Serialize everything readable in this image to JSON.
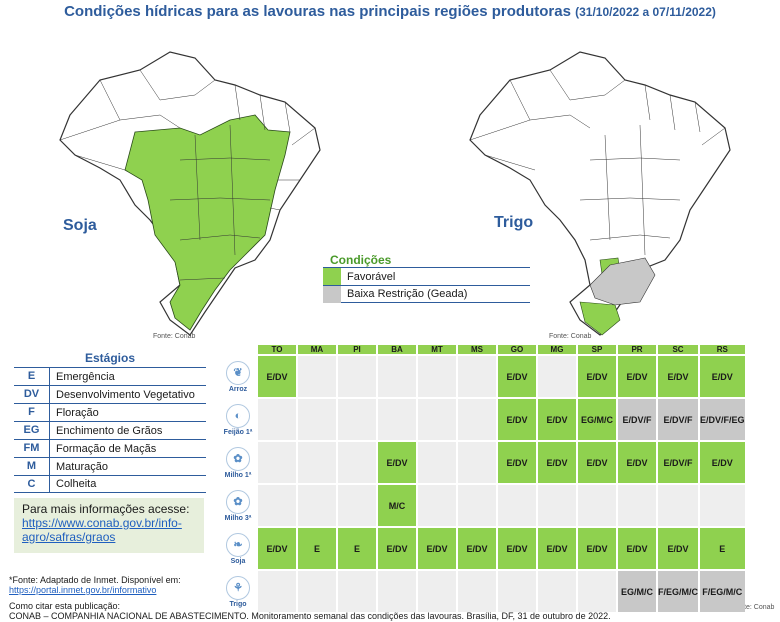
{
  "title": {
    "main": "Condições hídricas para as lavouras nas principais regiões produtoras",
    "dates": "(31/10/2022 a 07/11/2022)"
  },
  "maps": {
    "soja_label": "Soja",
    "trigo_label": "Trigo",
    "source_left": "Fonte: Conab",
    "source_right": "Fonte: Conab"
  },
  "legend": {
    "title": "Condições",
    "items": [
      {
        "label": "Favorável",
        "color": "#8fd14f"
      },
      {
        "label": "Baixa Restrição (Geada)",
        "color": "#c8c8c8"
      }
    ]
  },
  "stages": {
    "title": "Estágios",
    "items": [
      {
        "code": "E",
        "name": "Emergência"
      },
      {
        "code": "DV",
        "name": "Desenvolvimento Vegetativo"
      },
      {
        "code": "F",
        "name": "Floração"
      },
      {
        "code": "EG",
        "name": "Enchimento de Grãos"
      },
      {
        "code": "FM",
        "name": "Formação de Maçãs"
      },
      {
        "code": "M",
        "name": "Maturação"
      },
      {
        "code": "C",
        "name": "Colheita"
      }
    ]
  },
  "info": {
    "text": "Para mais informações acesse:",
    "link": "https://www.conab.gov.br/info-agro/safras/graos"
  },
  "footnote": {
    "source_text": "*Fonte: Adaptado de Inmet. Disponível em:",
    "source_link": "https://portal.inmet.gov.br/informativo",
    "cite_label": "Como citar esta publicação:",
    "cite_text": "CONAB – COMPANHIA NACIONAL DE ABASTECIMENTO. Monitoramento semanal das condições das lavouras. Brasília, DF, 31 de outubro de 2022.",
    "table_source": "Fonte: Conab"
  },
  "colors": {
    "favoravel": "#8fd14f",
    "restricao": "#c8c8c8",
    "accent": "#2e5c9c"
  },
  "table": {
    "states": [
      "TO",
      "MA",
      "PI",
      "BA",
      "MT",
      "MS",
      "GO",
      "MG",
      "SP",
      "PR",
      "SC",
      "RS"
    ],
    "rows": [
      {
        "crop": "Arroz",
        "icon": "rice-icon",
        "cells": [
          [
            "E/DV",
            "fav"
          ],
          [
            "",
            ""
          ],
          [
            "",
            ""
          ],
          [
            "",
            ""
          ],
          [
            "",
            ""
          ],
          [
            "",
            ""
          ],
          [
            "E/DV",
            "fav"
          ],
          [
            "",
            ""
          ],
          [
            "E/DV",
            "fav"
          ],
          [
            "E/DV",
            "fav"
          ],
          [
            "E/DV",
            "fav"
          ],
          [
            "E/DV",
            "fav"
          ]
        ]
      },
      {
        "crop": "Feijão 1ª",
        "icon": "bean-icon",
        "cells": [
          [
            "",
            ""
          ],
          [
            "",
            ""
          ],
          [
            "",
            ""
          ],
          [
            "",
            ""
          ],
          [
            "",
            ""
          ],
          [
            "",
            ""
          ],
          [
            "E/DV",
            "fav"
          ],
          [
            "E/DV",
            "fav"
          ],
          [
            "EG/M/C",
            "fav"
          ],
          [
            "E/DV/F",
            "res"
          ],
          [
            "E/DV/F",
            "res"
          ],
          [
            "E/DV/F/EG",
            "res"
          ]
        ]
      },
      {
        "crop": "Milho 1ª",
        "icon": "corn-icon",
        "cells": [
          [
            "",
            ""
          ],
          [
            "",
            ""
          ],
          [
            "",
            ""
          ],
          [
            "E/DV",
            "fav"
          ],
          [
            "",
            ""
          ],
          [
            "",
            ""
          ],
          [
            "E/DV",
            "fav"
          ],
          [
            "E/DV",
            "fav"
          ],
          [
            "E/DV",
            "fav"
          ],
          [
            "E/DV",
            "fav"
          ],
          [
            "E/DV/F",
            "fav"
          ],
          [
            "E/DV",
            "fav"
          ]
        ]
      },
      {
        "crop": "Milho 3ª",
        "icon": "corn-icon",
        "cells": [
          [
            "",
            ""
          ],
          [
            "",
            ""
          ],
          [
            "",
            ""
          ],
          [
            "M/C",
            "fav"
          ],
          [
            "",
            ""
          ],
          [
            "",
            ""
          ],
          [
            "",
            ""
          ],
          [
            "",
            ""
          ],
          [
            "",
            ""
          ],
          [
            "",
            ""
          ],
          [
            "",
            ""
          ],
          [
            "",
            ""
          ]
        ]
      },
      {
        "crop": "Soja",
        "icon": "soy-icon",
        "cells": [
          [
            "E/DV",
            "fav"
          ],
          [
            "E",
            "fav"
          ],
          [
            "E",
            "fav"
          ],
          [
            "E/DV",
            "fav"
          ],
          [
            "E/DV",
            "fav"
          ],
          [
            "E/DV",
            "fav"
          ],
          [
            "E/DV",
            "fav"
          ],
          [
            "E/DV",
            "fav"
          ],
          [
            "E/DV",
            "fav"
          ],
          [
            "E/DV",
            "fav"
          ],
          [
            "E/DV",
            "fav"
          ],
          [
            "E",
            "fav"
          ]
        ]
      },
      {
        "crop": "Trigo",
        "icon": "wheat-icon",
        "cells": [
          [
            "",
            ""
          ],
          [
            "",
            ""
          ],
          [
            "",
            ""
          ],
          [
            "",
            ""
          ],
          [
            "",
            ""
          ],
          [
            "",
            ""
          ],
          [
            "",
            ""
          ],
          [
            "",
            ""
          ],
          [
            "",
            ""
          ],
          [
            "EG/M/C",
            "res"
          ],
          [
            "F/EG/M/C",
            "res"
          ],
          [
            "F/EG/M/C",
            "res"
          ]
        ]
      }
    ]
  }
}
